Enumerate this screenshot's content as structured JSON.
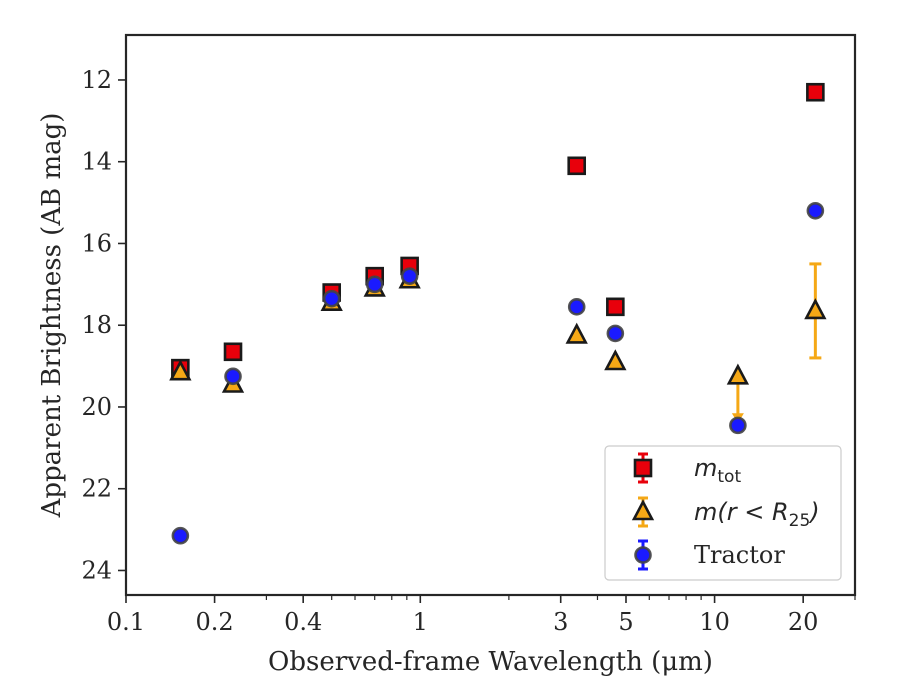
{
  "chart_data": {
    "type": "scatter",
    "xlabel": "Observed-frame Wavelength (μm)",
    "ylabel": "Apparent Brightness (AB mag)",
    "x_scale": "log",
    "xlim": [
      0.1,
      30
    ],
    "ylim": [
      24.6,
      10.9
    ],
    "y_inverted": true,
    "x_ticks": [
      {
        "value": 0.1,
        "label": "0.1"
      },
      {
        "value": 0.2,
        "label": "0.2"
      },
      {
        "value": 0.4,
        "label": "0.4"
      },
      {
        "value": 1,
        "label": "1"
      },
      {
        "value": 3,
        "label": "3"
      },
      {
        "value": 5,
        "label": "5"
      },
      {
        "value": 10,
        "label": "10"
      },
      {
        "value": 20,
        "label": "20"
      }
    ],
    "y_ticks": [
      12,
      14,
      16,
      18,
      20,
      22,
      24
    ],
    "grid": false,
    "legend_position": "lower-right",
    "series": [
      {
        "name": "m_tot",
        "legend_main": "m",
        "legend_sub": "tot",
        "marker": "square",
        "color": "#e8000b",
        "edge": "#1a1a1a",
        "points": [
          {
            "x": 0.153,
            "y": 19.05
          },
          {
            "x": 0.231,
            "y": 18.65
          },
          {
            "x": 0.5,
            "y": 17.2
          },
          {
            "x": 0.7,
            "y": 16.8
          },
          {
            "x": 0.92,
            "y": 16.55
          },
          {
            "x": 3.4,
            "y": 14.1
          },
          {
            "x": 4.6,
            "y": 17.55
          },
          {
            "x": 22,
            "y": 12.3
          }
        ]
      },
      {
        "name": "m(r < R_25)",
        "legend_main": "m(r < R",
        "legend_sub": "25",
        "legend_tail": ")",
        "marker": "triangle",
        "color": "#f5a816",
        "edge": "#1a1a1a",
        "points": [
          {
            "x": 0.153,
            "y": 19.15
          },
          {
            "x": 0.231,
            "y": 19.45
          },
          {
            "x": 0.5,
            "y": 17.45
          },
          {
            "x": 0.7,
            "y": 17.1
          },
          {
            "x": 0.92,
            "y": 16.9
          },
          {
            "x": 3.4,
            "y": 18.25
          },
          {
            "x": 4.6,
            "y": 18.9
          },
          {
            "x": 12,
            "y": 19.25,
            "upper_limit_to": 20.35
          },
          {
            "x": 22,
            "y": 17.65,
            "err_low": 1.15,
            "err_high": 1.15
          }
        ]
      },
      {
        "name": "Tractor",
        "legend_main": "Tractor",
        "marker": "circle",
        "color": "#1a1aff",
        "edge": "#444444",
        "points": [
          {
            "x": 0.153,
            "y": 23.15
          },
          {
            "x": 0.231,
            "y": 19.25
          },
          {
            "x": 0.5,
            "y": 17.35
          },
          {
            "x": 0.7,
            "y": 17.0
          },
          {
            "x": 0.92,
            "y": 16.8
          },
          {
            "x": 3.4,
            "y": 17.55
          },
          {
            "x": 4.6,
            "y": 18.2
          },
          {
            "x": 12,
            "y": 20.45
          },
          {
            "x": 22,
            "y": 15.2
          }
        ]
      }
    ]
  }
}
